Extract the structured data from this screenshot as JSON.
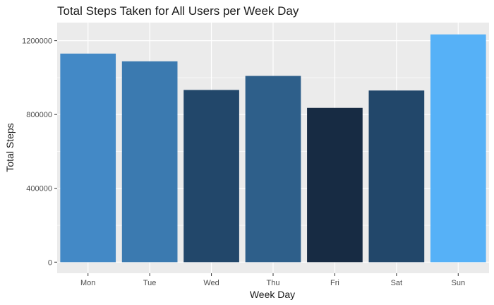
{
  "chart_data": {
    "type": "bar",
    "title": "Total Steps Taken for All Users per Week Day",
    "xlabel": "Week Day",
    "ylabel": "Total Steps",
    "categories": [
      "Mon",
      "Tue",
      "Wed",
      "Thu",
      "Fri",
      "Sat",
      "Sun"
    ],
    "values": [
      1130000,
      1088000,
      933000,
      1009000,
      836000,
      930000,
      1234000
    ],
    "colors": [
      "#4389C6",
      "#3B7AB0",
      "#22476A",
      "#2E5F8A",
      "#172B43",
      "#22476A",
      "#56B1F7"
    ],
    "ylim": [
      0,
      1300000
    ],
    "yticks": [
      0,
      400000,
      800000,
      1200000
    ],
    "ytick_labels": [
      "0",
      "400000",
      "800000",
      "1200000"
    ],
    "grid": true,
    "panel_background": "#EBEBEB",
    "grid_color": "#FFFFFF"
  }
}
